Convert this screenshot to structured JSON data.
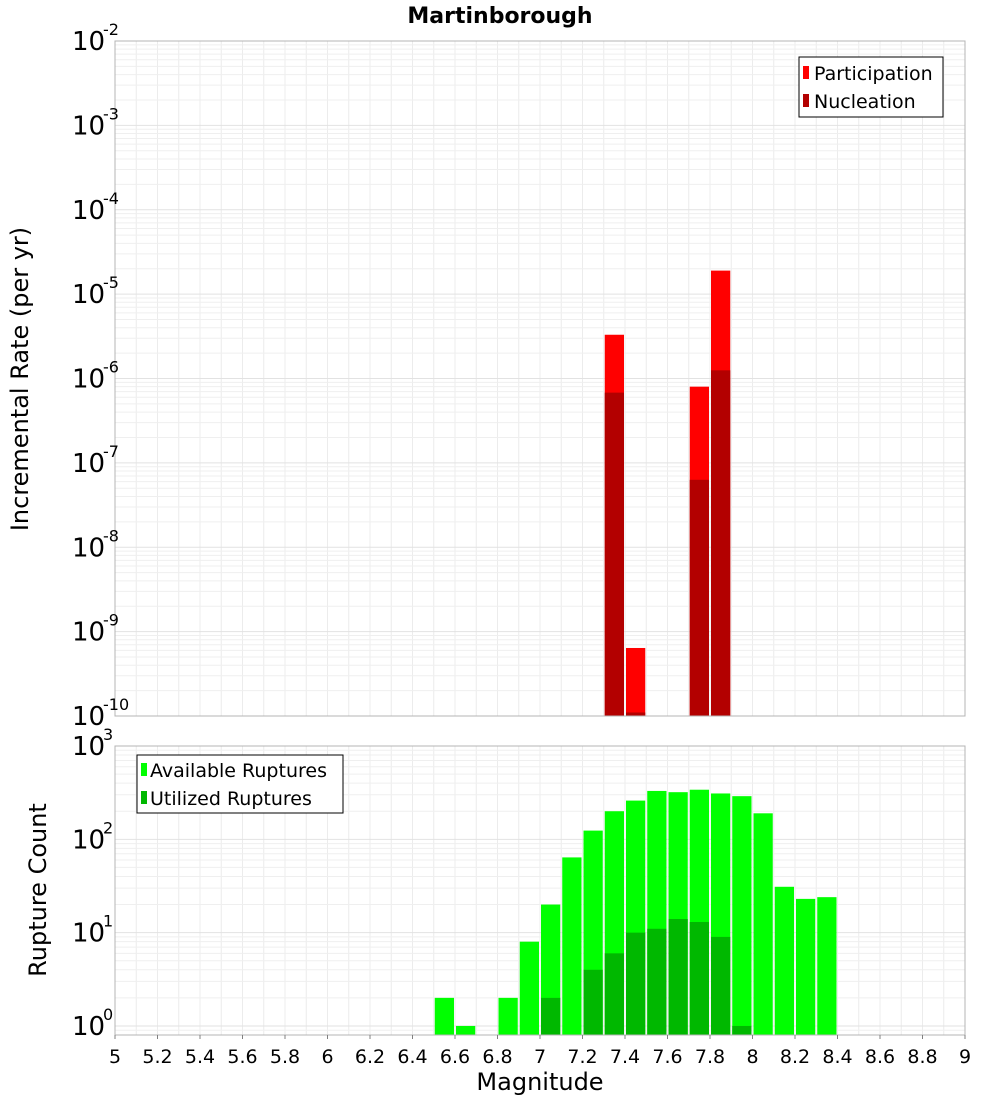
{
  "chart_data": [
    {
      "type": "bar",
      "title": "Martinborough",
      "xlabel": "",
      "ylabel": "Incremental Rate (per yr)",
      "yscale": "log",
      "xlim": [
        5,
        9
      ],
      "ylim": [
        1e-10,
        0.01
      ],
      "grid": true,
      "legend_position": "top-right",
      "ytick_exponents": [
        "-10",
        "-9",
        "-8",
        "-7",
        "-6",
        "-5",
        "-4",
        "-3",
        "-2"
      ],
      "bar_width": 0.1,
      "series": [
        {
          "name": "Participation",
          "color": "#ff0000",
          "x": [
            7.35,
            7.45,
            7.75,
            7.85
          ],
          "values": [
            3.3e-06,
            6.4e-10,
            8e-07,
            1.9e-05
          ]
        },
        {
          "name": "Nucleation",
          "color": "#b30000",
          "x": [
            7.35,
            7.45,
            7.75,
            7.85
          ],
          "values": [
            6.8e-07,
            1.1e-10,
            6.3e-08,
            1.25e-06
          ]
        }
      ]
    },
    {
      "type": "bar",
      "title": "",
      "xlabel": "Magnitude",
      "ylabel": "Rupture Count",
      "yscale": "log",
      "xlim": [
        5,
        9
      ],
      "ylim": [
        0.8,
        1000
      ],
      "grid": true,
      "legend_position": "top-left",
      "ytick_exponents": [
        "0",
        "1",
        "2",
        "3"
      ],
      "xtick_labels": [
        "5",
        "5.2",
        "5.4",
        "5.6",
        "5.8",
        "6",
        "6.2",
        "6.4",
        "6.6",
        "6.8",
        "7",
        "7.2",
        "7.4",
        "7.6",
        "7.8",
        "8",
        "8.2",
        "8.4",
        "8.6",
        "8.8",
        "9"
      ],
      "bar_width": 0.1,
      "series": [
        {
          "name": "Available Ruptures",
          "color": "#00ff00",
          "x": [
            6.55,
            6.65,
            6.85,
            6.95,
            7.05,
            7.15,
            7.25,
            7.35,
            7.45,
            7.55,
            7.65,
            7.75,
            7.85,
            7.95,
            8.05,
            8.15,
            8.25,
            8.35
          ],
          "values": [
            2,
            1,
            2,
            8,
            20,
            64,
            124,
            200,
            260,
            330,
            320,
            340,
            310,
            290,
            190,
            31,
            23,
            24
          ]
        },
        {
          "name": "Utilized Ruptures",
          "color": "#00b800",
          "x": [
            6.55,
            6.65,
            6.85,
            6.95,
            7.05,
            7.15,
            7.25,
            7.35,
            7.45,
            7.55,
            7.65,
            7.75,
            7.85,
            7.95,
            8.05,
            8.15,
            8.25,
            8.35
          ],
          "values": [
            0,
            0,
            0,
            0,
            2,
            0,
            4,
            6,
            10,
            11,
            14,
            13,
            9,
            1,
            0,
            0,
            0,
            0
          ]
        }
      ]
    }
  ]
}
